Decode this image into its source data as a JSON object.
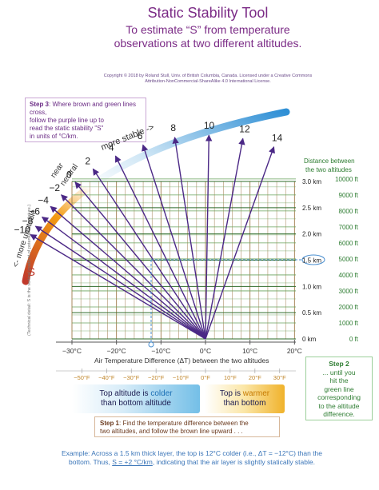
{
  "title": "Static Stability Tool",
  "subtitle_line1": "To estimate “S” from temperature",
  "subtitle_line2": "observations at two different altitudes.",
  "copyright_line1": "Copyright © 2018 by Roland Stull, Univ. of British Columbia, Canada.  Licensed under a Creative Commons",
  "copyright_line2": "Attribution-NonCommercial-ShareAlike 4.0 International License.",
  "step3": {
    "label": "Step 3",
    "text1": ": Where brown and green lines cross,",
    "text2": "follow the purple line up to",
    "text3": "read the static stability \"S\"",
    "text4": "in units of °C/km."
  },
  "arc_labels": {
    "more_stable": "more stable ->",
    "near_neutral_1": "near",
    "near_neutral_2": "neutral",
    "more_unstable": "<- more unstable",
    "s_symbol": "S"
  },
  "stability_values": [
    "14",
    "12",
    "10",
    "8",
    "6",
    "4",
    "2",
    "0",
    "−2",
    "−4",
    "−6",
    "−8",
    "−10"
  ],
  "right_axis": {
    "header1": "Distance between",
    "header2": "the two altitudes",
    "km_labels": [
      "3.0 km",
      "2.5 km",
      "2.0 km",
      "1.5 km",
      "1.0 km",
      "0.5 km",
      "0 km"
    ],
    "ft_labels": [
      "10000 ft",
      "9000 ft",
      "8000 ft",
      "7000 ft",
      "6000 ft",
      "5000 ft",
      "4000 ft",
      "3000 ft",
      "2000 ft",
      "1000 ft",
      "0 ft"
    ]
  },
  "x_axis_c": [
    "−30°C",
    "−20°C",
    "−10°C",
    "0°C",
    "10°C",
    "20°C"
  ],
  "x_axis_title": "Air Temperature Difference (ΔT) between the two altitudes",
  "x_axis_f": [
    "−50°F",
    "−40°F",
    "−30°F",
    "−20°F",
    "−10°F",
    "0°F",
    "10°F",
    "20°F",
    "30°F"
  ],
  "left_note": "(Technical detail:  S is the vertical gradient of potential temperature.)",
  "legend": {
    "cold1": "Top altitude is ",
    "cold_word": "colder",
    "cold2": "than bottom altitude",
    "warm1": "Top is ",
    "warm_word": "warmer",
    "warm2": "than bottom"
  },
  "step1": {
    "label": "Step 1",
    "text1": ":  Find the temperature difference between the",
    "text2": "two altitudes, and follow the brown line upward . . ."
  },
  "step2": {
    "label": "Step 2",
    "text1": "... until you",
    "text2": "hit the",
    "text3": "green line",
    "text4": "corresponding",
    "text5": "to the altitude",
    "text6": "difference."
  },
  "example": {
    "line1": "Example: Across a 1.5 km thick layer, the top is 12°C colder (i.e., ΔT = −12°C) than the",
    "line2a": "bottom.  Thus, ",
    "line2b": "S = +2 °C/km",
    "line2c": ", indicating that the air layer is slightly statically stable."
  },
  "colors": {
    "purple": "#4b2886",
    "brown": "#a07a4a",
    "green": "#6aa35c",
    "title": "#7b2b86",
    "blue_dash": "#4a8fd0"
  }
}
